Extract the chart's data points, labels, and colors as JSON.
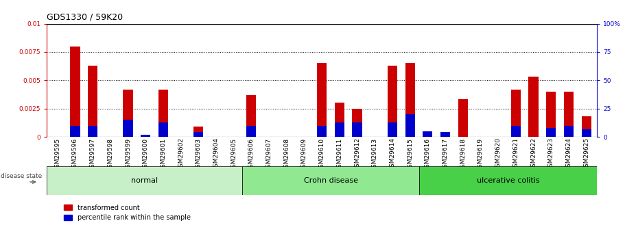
{
  "title": "GDS1330 / 59K20",
  "samples": [
    "GSM29595",
    "GSM29596",
    "GSM29597",
    "GSM29598",
    "GSM29599",
    "GSM29600",
    "GSM29601",
    "GSM29602",
    "GSM29603",
    "GSM29604",
    "GSM29605",
    "GSM29606",
    "GSM29607",
    "GSM29608",
    "GSM29609",
    "GSM29610",
    "GSM29611",
    "GSM29612",
    "GSM29613",
    "GSM29614",
    "GSM29615",
    "GSM29616",
    "GSM29617",
    "GSM29618",
    "GSM29619",
    "GSM29620",
    "GSM29621",
    "GSM29622",
    "GSM29623",
    "GSM29624",
    "GSM29625"
  ],
  "red_values": [
    0.0,
    0.008,
    0.0063,
    0.0,
    0.0042,
    0.0,
    0.0042,
    0.0,
    0.0009,
    0.0,
    0.0,
    0.0037,
    0.0,
    0.0,
    0.0,
    0.0065,
    0.003,
    0.0025,
    0.0,
    0.0063,
    0.0065,
    0.0,
    0.0,
    0.0033,
    0.0,
    0.0,
    0.0042,
    0.0053,
    0.004,
    0.004,
    0.0018
  ],
  "blue_values_pct": [
    0,
    10,
    10,
    0,
    15,
    2,
    13,
    0,
    4,
    0,
    0,
    10,
    0,
    0,
    0,
    10,
    13,
    13,
    0,
    13,
    20,
    5,
    4,
    0,
    0,
    0,
    10,
    0,
    8,
    10,
    7
  ],
  "groups": [
    {
      "label": "normal",
      "start": 0,
      "end": 10,
      "color": "#c8f0c8"
    },
    {
      "label": "Crohn disease",
      "start": 11,
      "end": 20,
      "color": "#90e890"
    },
    {
      "label": "ulcerative colitis",
      "start": 21,
      "end": 30,
      "color": "#48d048"
    }
  ],
  "red_color": "#cc0000",
  "blue_color": "#0000cc",
  "ylim_left": [
    0,
    0.01
  ],
  "ylim_right": [
    0,
    100
  ],
  "yticks_left": [
    0,
    0.0025,
    0.005,
    0.0075,
    0.01
  ],
  "yticks_left_labels": [
    "0",
    "0.0025",
    "0.005",
    "0.0075",
    "0.01"
  ],
  "yticks_right": [
    0,
    25,
    50,
    75,
    100
  ],
  "yticks_right_labels": [
    "0",
    "25",
    "50",
    "75",
    "100%"
  ],
  "bar_width": 0.55,
  "bg_color": "#ffffff",
  "plot_bg": "#ffffff",
  "title_fontsize": 9,
  "tick_fontsize": 6.5,
  "label_fontsize": 8
}
